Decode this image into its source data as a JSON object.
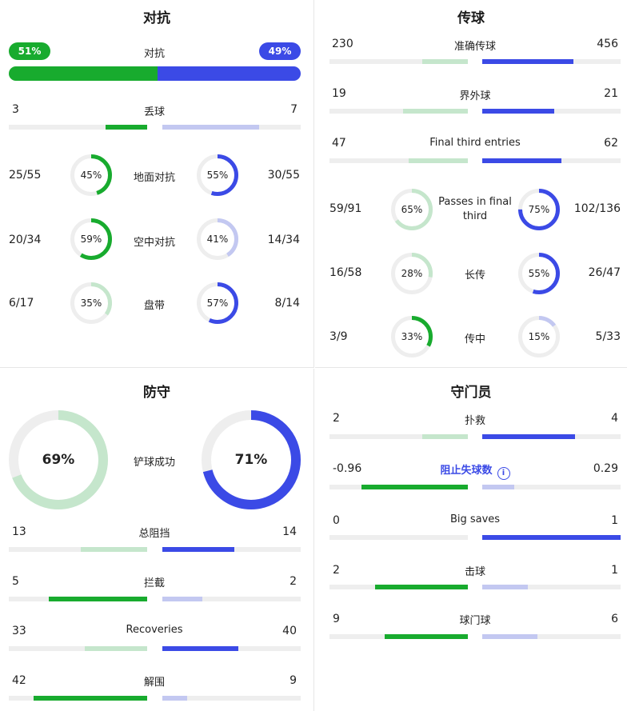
{
  "colors": {
    "green": "#18ab2e",
    "green_light": "#c5e6cc",
    "blue": "#3b4ae6",
    "blue_light": "#c3c8f1",
    "track": "#eeeeee"
  },
  "duel": {
    "title": "对抗",
    "overall": {
      "label": "对抗",
      "home_pct": "51%",
      "away_pct": "49%",
      "home_frac": 0.51
    },
    "dispossessed": {
      "label": "丢球",
      "home": "3",
      "away": "7",
      "home_frac": 0.3,
      "away_frac": 0.7
    },
    "rings": [
      {
        "label": "地面对抗",
        "home": "25/55",
        "home_pct": "45%",
        "home_frac": 0.45,
        "away": "30/55",
        "away_pct": "55%",
        "away_frac": 0.55
      },
      {
        "label": "空中对抗",
        "home": "20/34",
        "home_pct": "59%",
        "home_frac": 0.59,
        "away": "14/34",
        "away_pct": "41%",
        "away_frac": 0.41
      },
      {
        "label": "盘带",
        "home": "6/17",
        "home_pct": "35%",
        "home_frac": 0.35,
        "away": "8/14",
        "away_pct": "57%",
        "away_frac": 0.57
      }
    ]
  },
  "passing": {
    "title": "传球",
    "bars": [
      {
        "label": "准确传球",
        "home": "230",
        "away": "456",
        "home_frac": 0.33,
        "away_frac": 0.66
      },
      {
        "label": "界外球",
        "home": "19",
        "away": "21",
        "home_frac": 0.47,
        "away_frac": 0.52
      },
      {
        "label": "Final third entries",
        "home": "47",
        "away": "62",
        "home_frac": 0.43,
        "away_frac": 0.57
      }
    ],
    "rings": [
      {
        "label": "Passes in final third",
        "home": "59/91",
        "home_pct": "65%",
        "home_frac": 0.65,
        "away": "102/136",
        "away_pct": "75%",
        "away_frac": 0.75
      },
      {
        "label": "长传",
        "home": "16/58",
        "home_pct": "28%",
        "home_frac": 0.28,
        "away": "26/47",
        "away_pct": "55%",
        "away_frac": 0.55
      },
      {
        "label": "传中",
        "home": "3/9",
        "home_pct": "33%",
        "home_frac": 0.33,
        "away": "5/33",
        "away_pct": "15%",
        "away_frac": 0.15
      }
    ]
  },
  "defending": {
    "title": "防守",
    "tackles": {
      "label": "铲球成功",
      "home_pct": "69%",
      "home_frac": 0.69,
      "away_pct": "71%",
      "away_frac": 0.71
    },
    "bars": [
      {
        "label": "总阻挡",
        "home": "13",
        "away": "14",
        "home_frac": 0.48,
        "away_frac": 0.52
      },
      {
        "label": "拦截",
        "home": "5",
        "away": "2",
        "home_frac": 0.71,
        "away_frac": 0.29
      },
      {
        "label": "Recoveries",
        "home": "33",
        "away": "40",
        "home_frac": 0.45,
        "away_frac": 0.55
      },
      {
        "label": "解围",
        "home": "42",
        "away": "9",
        "home_frac": 0.82,
        "away_frac": 0.18
      }
    ]
  },
  "goalkeeping": {
    "title": "守门员",
    "bars": [
      {
        "label": "扑救",
        "home": "2",
        "away": "4",
        "home_frac": 0.33,
        "away_frac": 0.67,
        "link": false
      },
      {
        "label": "阻止失球数",
        "home": "-0.96",
        "away": "0.29",
        "home_frac": 0.77,
        "away_frac": 0.23,
        "link": true
      },
      {
        "label": "Big saves",
        "home": "0",
        "away": "1",
        "home_frac": 0.0,
        "away_frac": 1.0,
        "link": false
      },
      {
        "label": "击球",
        "home": "2",
        "away": "1",
        "home_frac": 0.67,
        "away_frac": 0.33,
        "link": false
      },
      {
        "label": "球门球",
        "home": "9",
        "away": "6",
        "home_frac": 0.6,
        "away_frac": 0.4,
        "link": false
      }
    ]
  }
}
